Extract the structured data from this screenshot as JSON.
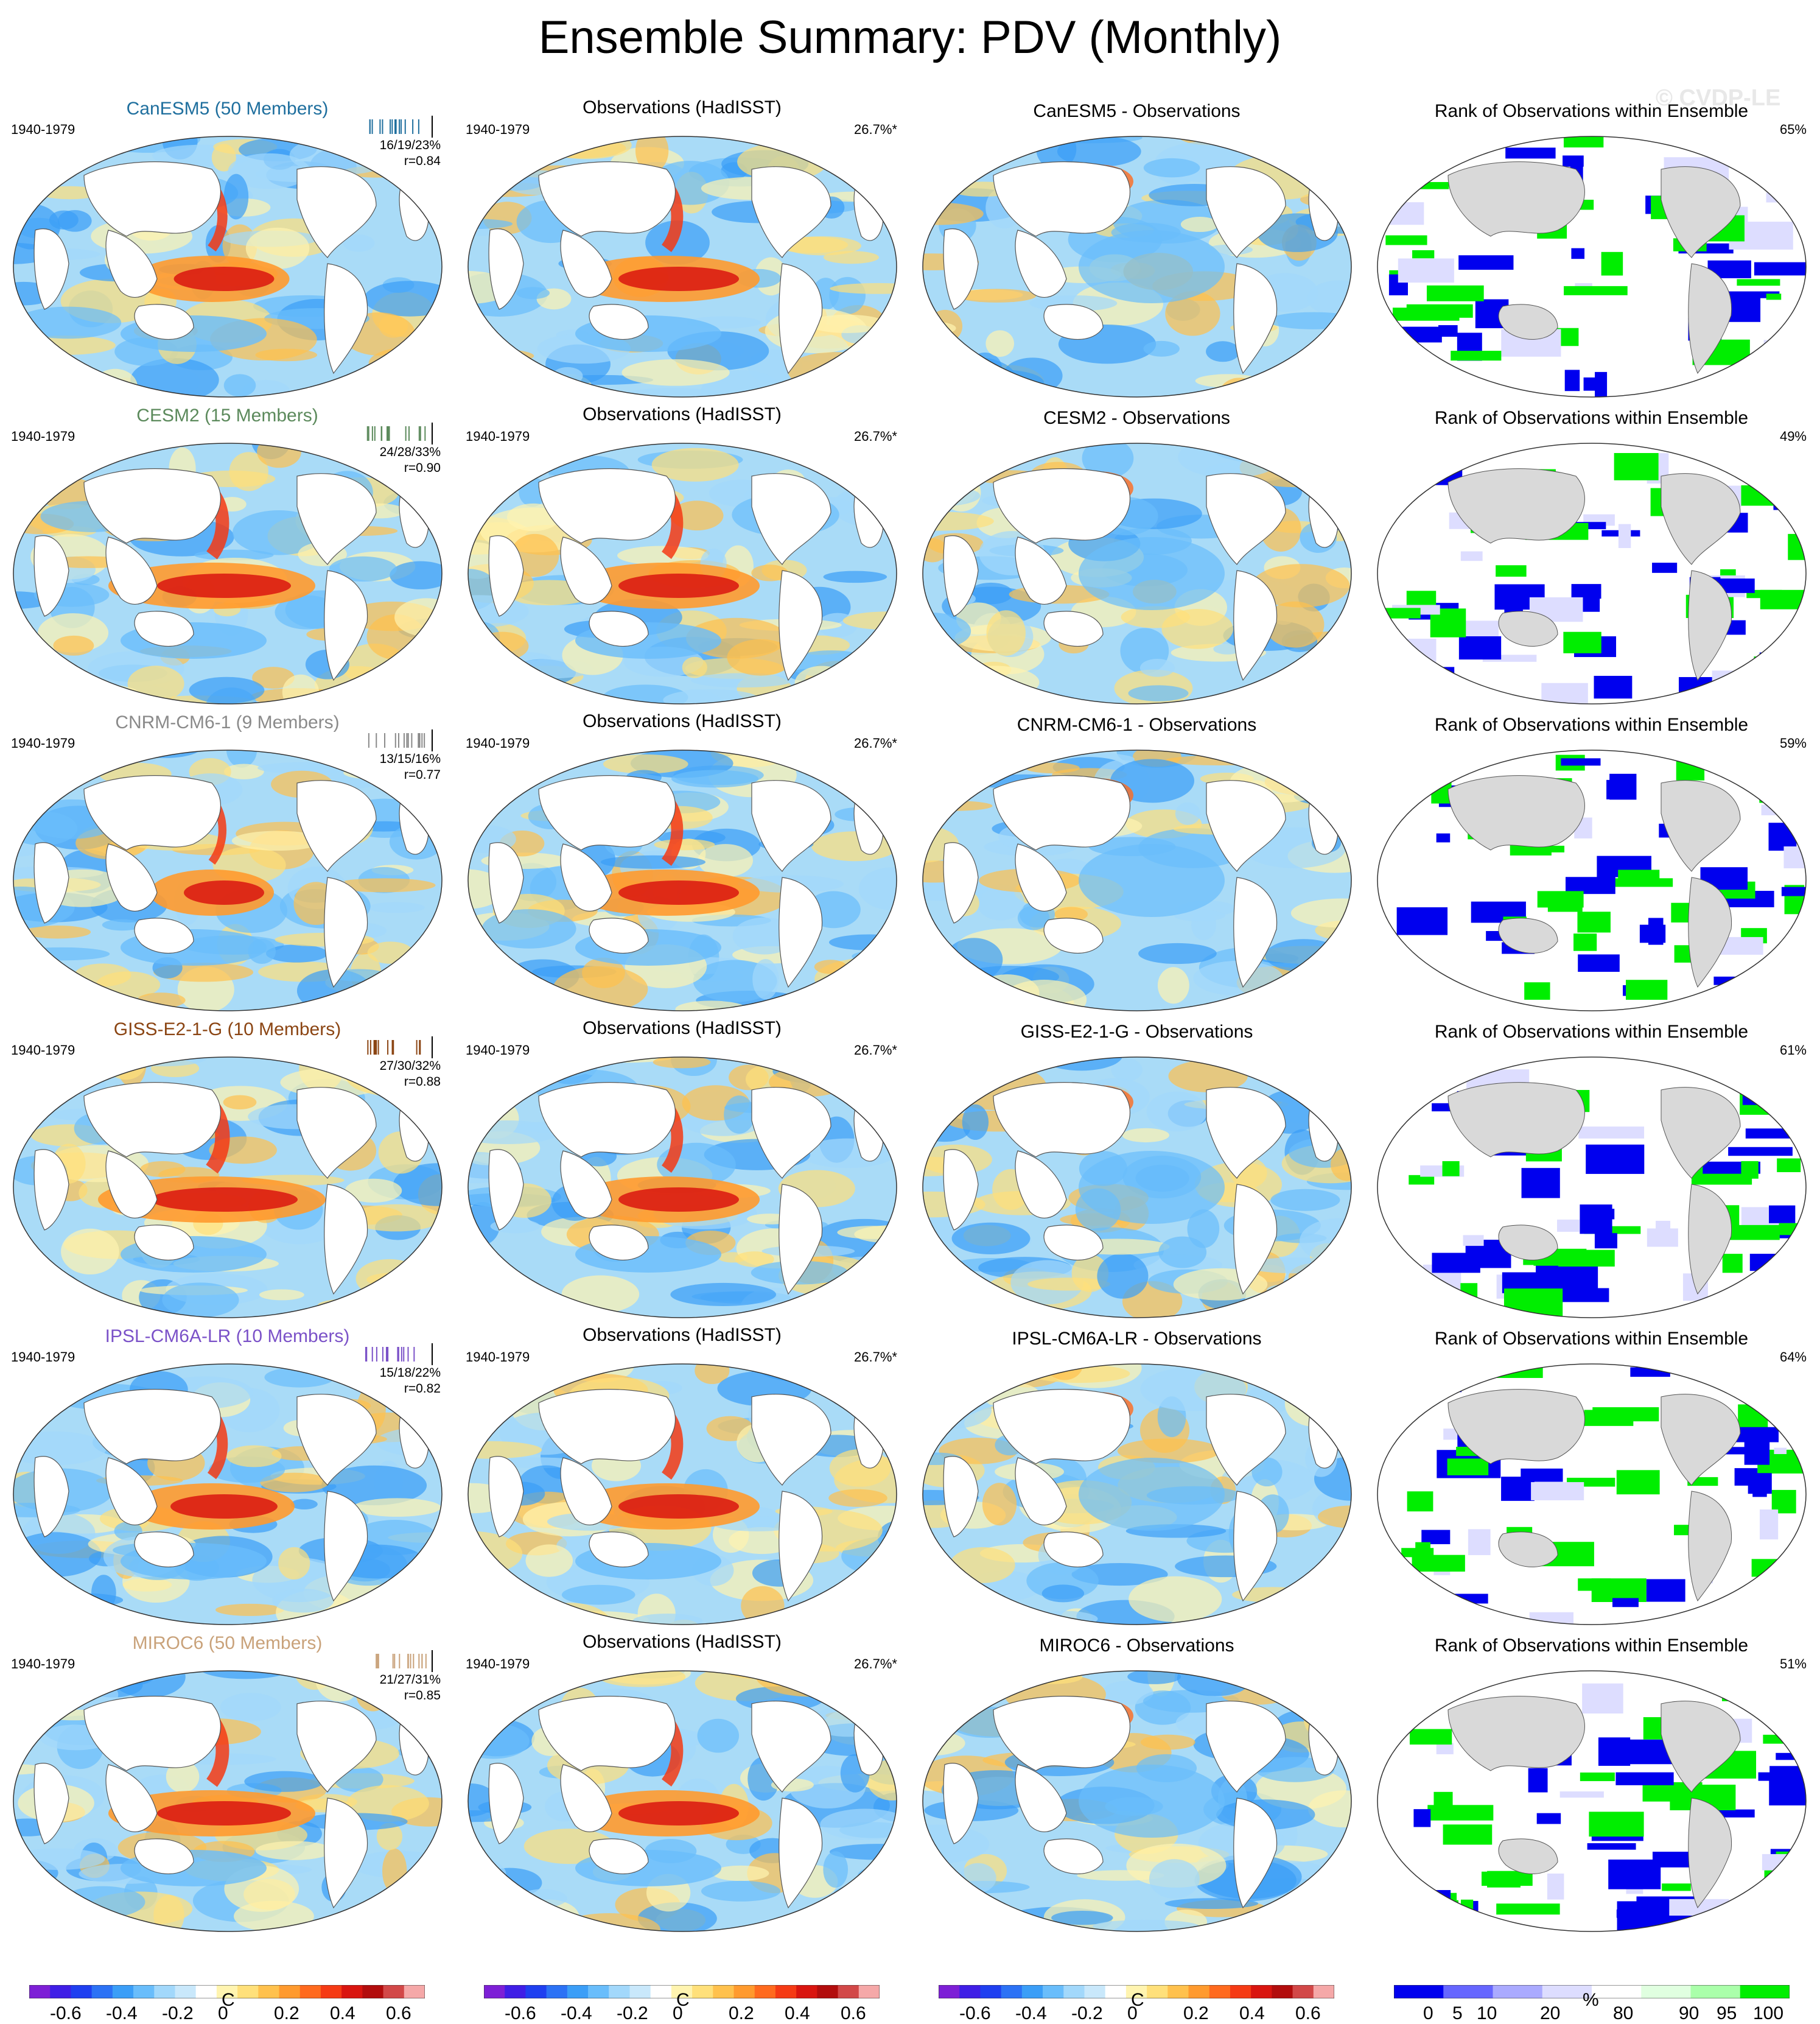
{
  "title": "Ensemble Summary: PDV (Monthly)",
  "watermark": "© CVDP-LE",
  "obs_title": "Observations (HadISST)",
  "rank_title": "Rank of Observations within Ensemble",
  "obs_pct": "26.7%*",
  "colors": {
    "diverging": [
      "#7d1fd6",
      "#3f1ee6",
      "#1f3ff0",
      "#2c72f5",
      "#3b9ef7",
      "#69bdfb",
      "#a2d8fb",
      "#c9e8fb",
      "#ffffff",
      "#fff4b0",
      "#ffe07a",
      "#ffc14d",
      "#ff9a2e",
      "#ff6a1e",
      "#f53a14",
      "#d9150f",
      "#b20d0d",
      "#d24848",
      "#f5a8a8"
    ],
    "rank": [
      "#0000ee",
      "#6666ff",
      "#aaaaff",
      "#ddddff",
      "#ffffff",
      "#e0ffe0",
      "#aaffaa",
      "#00ee00"
    ],
    "land": "#d9d9d9"
  },
  "rows": [
    {
      "model": "CanESM5 (50 Members)",
      "model_color": "#1f6f9e",
      "years": "1940-1979",
      "stats": "16/19/23%",
      "r": "r=0.84",
      "diff_title": "CanESM5 - Observations",
      "rank_pct": "65%",
      "strength": 0.75
    },
    {
      "model": "CESM2 (15 Members)",
      "model_color": "#5c8a5c",
      "years": "1940-1979",
      "stats": "24/28/33%",
      "r": "r=0.90",
      "diff_title": "CESM2 - Observations",
      "rank_pct": "49%",
      "strength": 1.0
    },
    {
      "model": "CNRM-CM6-1 (9 Members)",
      "model_color": "#8a8a8a",
      "years": "1940-1979",
      "stats": "13/15/16%",
      "r": "r=0.77",
      "diff_title": "CNRM-CM6-1 - Observations",
      "rank_pct": "59%",
      "strength": 0.6
    },
    {
      "model": "GISS-E2-1-G (10 Members)",
      "model_color": "#8b4513",
      "years": "1940-1979",
      "stats": "27/30/32%",
      "r": "r=0.88",
      "diff_title": "GISS-E2-1-G - Observations",
      "rank_pct": "61%",
      "strength": 1.1
    },
    {
      "model": "IPSL-CM6A-LR (10 Members)",
      "model_color": "#7b52c8",
      "years": "1940-1979",
      "stats": "15/18/22%",
      "r": "r=0.82",
      "diff_title": "IPSL-CM6A-LR - Observations",
      "rank_pct": "64%",
      "strength": 0.8
    },
    {
      "model": "MIROC6 (50 Members)",
      "model_color": "#c9a27a",
      "years": "1940-1979",
      "stats": "21/27/31%",
      "r": "r=0.85",
      "diff_title": "MIROC6 - Observations",
      "rank_pct": "51%",
      "strength": 1.0
    }
  ],
  "colorbars": {
    "temp_ticks": [
      "-0.6",
      "-0.4",
      "-0.2",
      "0",
      "0.2",
      "0.4",
      "0.6"
    ],
    "temp_unit": "C",
    "rank_ticks": [
      "0",
      "5",
      "10",
      "20",
      "80",
      "90",
      "95",
      "100"
    ],
    "rank_unit": "%"
  }
}
